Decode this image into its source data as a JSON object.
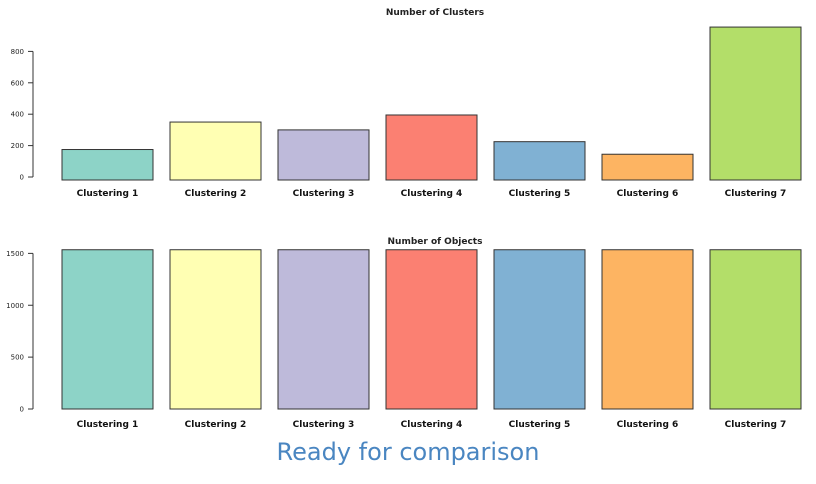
{
  "chart_data": [
    {
      "type": "bar",
      "title": "Number of Clusters",
      "categories": [
        "Clustering 1",
        "Clustering 2",
        "Clustering 3",
        "Clustering 4",
        "Clustering 5",
        "Clustering 6",
        "Clustering 7"
      ],
      "values": [
        175,
        350,
        300,
        395,
        225,
        145,
        955
      ],
      "yticks": [
        "0",
        "200",
        "400",
        "600",
        "800"
      ],
      "ylim": [
        0,
        1000
      ],
      "colors": [
        "#8dd3c7",
        "#ffffb3",
        "#bebada",
        "#fb8072",
        "#80b1d3",
        "#fdb462",
        "#b3de69"
      ]
    },
    {
      "type": "bar",
      "title": "Number of Objects",
      "categories": [
        "Clustering 1",
        "Clustering 2",
        "Clustering 3",
        "Clustering 4",
        "Clustering 5",
        "Clustering 6",
        "Clustering 7"
      ],
      "values": [
        1535,
        1535,
        1535,
        1535,
        1535,
        1535,
        1535
      ],
      "yticks": [
        "0",
        "500",
        "1000",
        "1500"
      ],
      "ylim": [
        0,
        1600
      ],
      "colors": [
        "#8dd3c7",
        "#ffffb3",
        "#bebada",
        "#fb8072",
        "#80b1d3",
        "#fdb462",
        "#b3de69"
      ]
    }
  ],
  "footer": "Ready for comparison"
}
